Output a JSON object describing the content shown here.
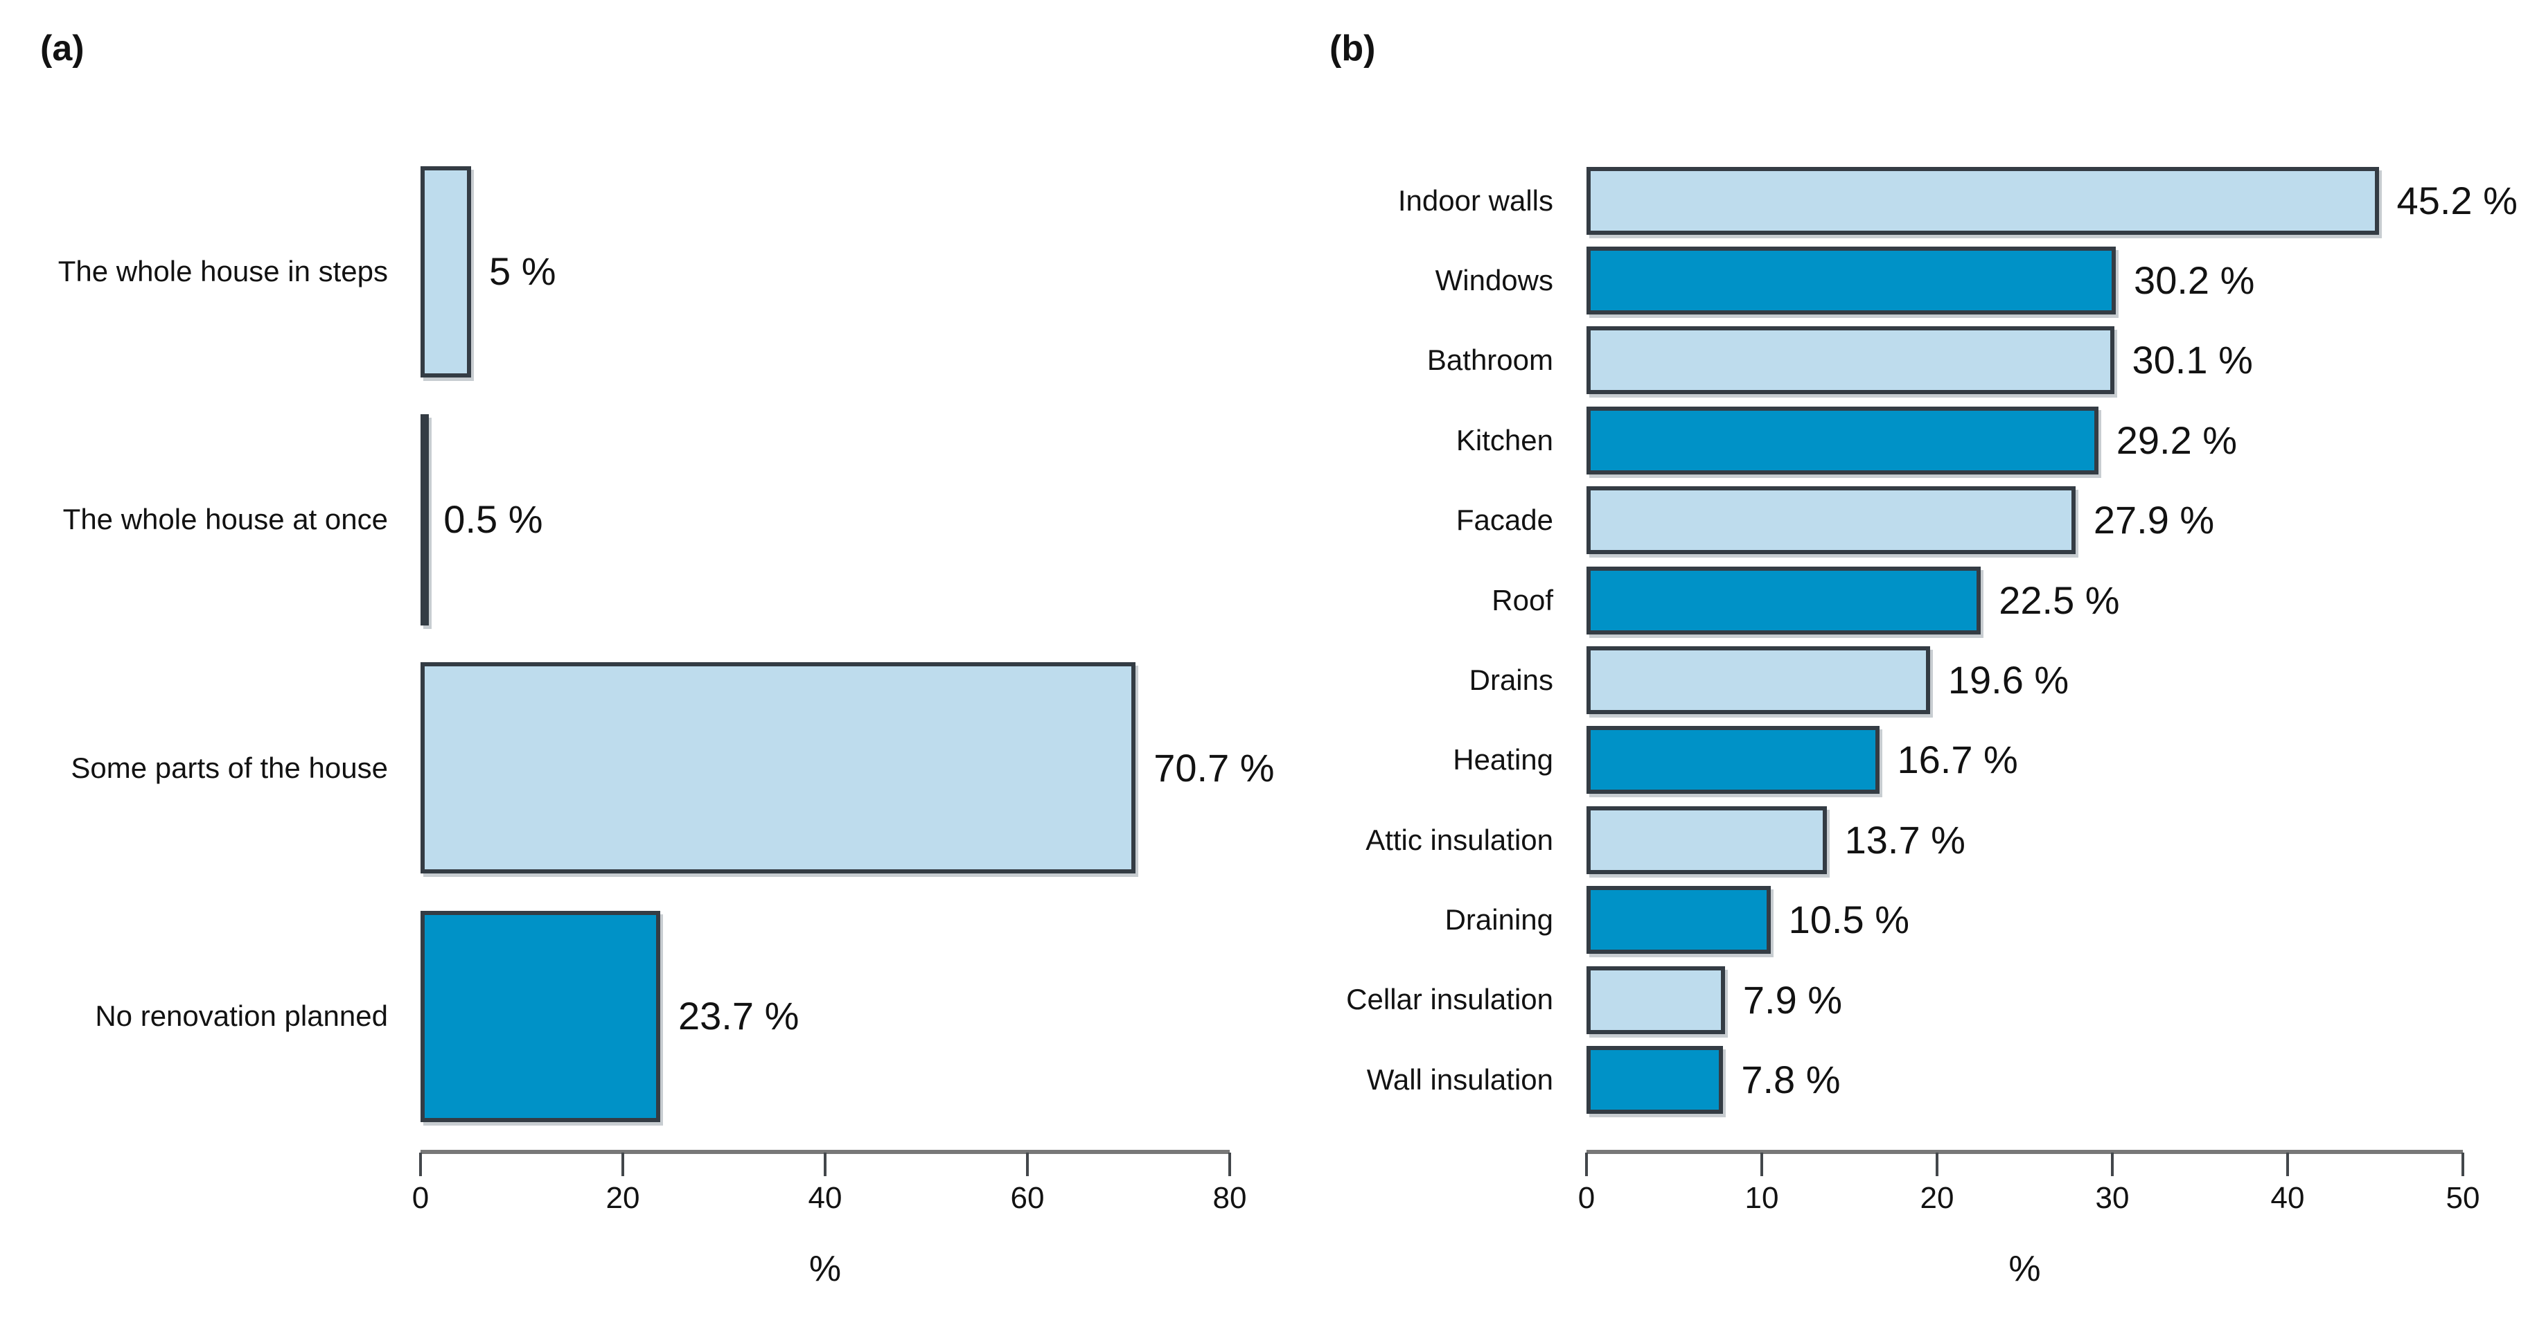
{
  "figure": {
    "background": "#ffffff",
    "text_color": "#121212",
    "bar_light_color": "#bedced",
    "bar_dark_color": "#0092c7",
    "bar_border_color": "#343c44",
    "axis_line_color": "#787878",
    "tick_color": "#43474b"
  },
  "chart_data": [
    {
      "type": "bar",
      "orientation": "horizontal",
      "panel_label": "(a)",
      "title": "",
      "xlabel": "%",
      "ylabel": "",
      "xlim": [
        0,
        80
      ],
      "xticks": [
        0,
        20,
        40,
        60,
        80
      ],
      "xtick_labels": [
        "0",
        "20",
        "40",
        "60",
        "80"
      ],
      "grid": false,
      "legend": false,
      "categories": [
        "The whole house in steps",
        "The whole house at once",
        "Some parts of the house",
        "No renovation planned"
      ],
      "values": [
        5,
        0.5,
        70.7,
        23.7
      ],
      "value_labels": [
        "5 %",
        "0.5 %",
        "70.7 %",
        "23.7 %"
      ],
      "bar_color_pattern": [
        "light",
        "dark",
        "light",
        "dark"
      ]
    },
    {
      "type": "bar",
      "orientation": "horizontal",
      "panel_label": "(b)",
      "title": "",
      "xlabel": "%",
      "ylabel": "",
      "xlim": [
        0,
        50
      ],
      "xticks": [
        0,
        10,
        20,
        30,
        40,
        50
      ],
      "xtick_labels": [
        "0",
        "10",
        "20",
        "30",
        "40",
        "50"
      ],
      "grid": false,
      "legend": false,
      "categories": [
        "Indoor walls",
        "Windows",
        "Bathroom",
        "Kitchen",
        "Facade",
        "Roof",
        "Drains",
        "Heating",
        "Attic insulation",
        "Draining",
        "Cellar insulation",
        "Wall insulation"
      ],
      "values": [
        45.2,
        30.2,
        30.1,
        29.2,
        27.9,
        22.5,
        19.6,
        16.7,
        13.7,
        10.5,
        7.9,
        7.8
      ],
      "value_labels": [
        "45.2 %",
        "30.2 %",
        "30.1 %",
        "29.2 %",
        "27.9 %",
        "22.5 %",
        "19.6 %",
        "16.7 %",
        "13.7 %",
        "10.5 %",
        "7.9 %",
        "7.8 %"
      ],
      "bar_color_pattern": [
        "light",
        "dark",
        "light",
        "dark",
        "light",
        "dark",
        "light",
        "dark",
        "light",
        "dark",
        "light",
        "dark"
      ]
    }
  ]
}
